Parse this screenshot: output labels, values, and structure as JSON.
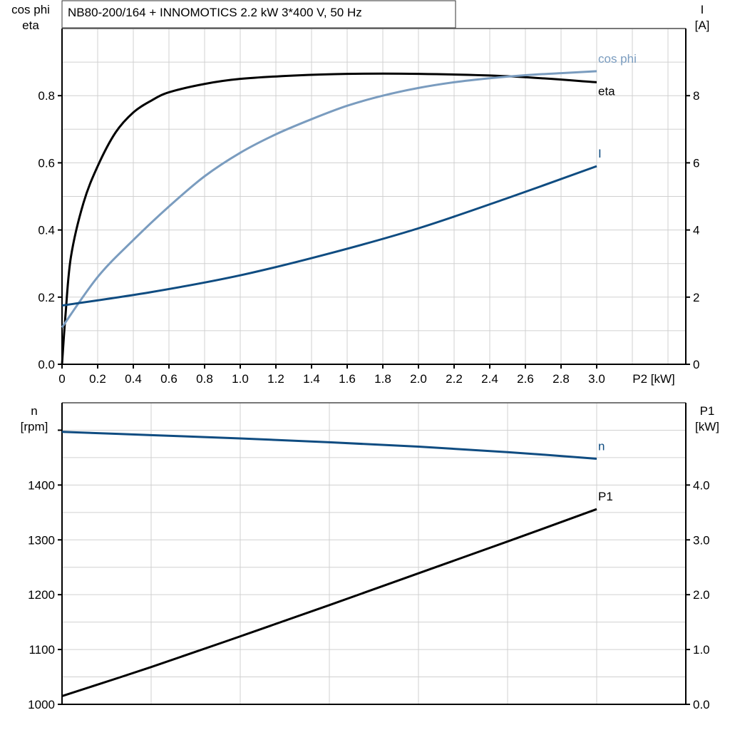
{
  "chart_data": [
    {
      "type": "line",
      "title": "NB80-200/164 + INNOMOTICS   2.2 kW   3*400 V, 50 Hz",
      "xlabel": "P2 [kW]",
      "ylabel_left": [
        "cos phi",
        "eta"
      ],
      "ylabel_right": [
        "I",
        "[A]"
      ],
      "xlim": [
        0,
        3.5
      ],
      "ylim_left": [
        0,
        1.0
      ],
      "ylim_right": [
        0,
        10
      ],
      "x_ticks": [
        "0",
        "0.2",
        "0.4",
        "0.6",
        "0.8",
        "1.0",
        "1.2",
        "1.4",
        "1.6",
        "1.8",
        "2.0",
        "2.2",
        "2.4",
        "2.6",
        "2.8",
        "3.0"
      ],
      "y_ticks_left": [
        "0.0",
        "0.2",
        "0.4",
        "0.6",
        "0.8"
      ],
      "y_ticks_right": [
        "0",
        "2",
        "4",
        "6",
        "8"
      ],
      "grid": true,
      "series": [
        {
          "name": "eta",
          "axis": "left",
          "color": "#000000",
          "x": [
            0,
            0.02,
            0.05,
            0.12,
            0.2,
            0.3,
            0.4,
            0.5,
            0.6,
            0.8,
            1.0,
            1.3,
            1.6,
            2.0,
            2.5,
            3.0
          ],
          "y": [
            0,
            0.15,
            0.32,
            0.48,
            0.59,
            0.69,
            0.75,
            0.785,
            0.81,
            0.835,
            0.85,
            0.86,
            0.865,
            0.865,
            0.858,
            0.84
          ]
        },
        {
          "name": "cos phi",
          "axis": "left",
          "color": "#7a9cbf",
          "x": [
            0,
            0.2,
            0.4,
            0.6,
            0.8,
            1.0,
            1.2,
            1.4,
            1.6,
            1.8,
            2.0,
            2.2,
            2.4,
            2.6,
            2.8,
            3.0
          ],
          "y": [
            0.11,
            0.26,
            0.37,
            0.47,
            0.56,
            0.63,
            0.685,
            0.73,
            0.77,
            0.8,
            0.823,
            0.84,
            0.852,
            0.861,
            0.867,
            0.873
          ]
        },
        {
          "name": "I",
          "axis": "right",
          "color": "#0f4c81",
          "x": [
            0,
            0.5,
            1.0,
            1.5,
            2.0,
            2.5,
            3.0
          ],
          "y": [
            1.75,
            2.15,
            2.65,
            3.3,
            4.05,
            4.95,
            5.9
          ]
        }
      ]
    },
    {
      "type": "line",
      "ylabel_left": [
        "n",
        "[rpm]"
      ],
      "ylabel_right": [
        "P1",
        "[kW]"
      ],
      "xlim": [
        0,
        3.5
      ],
      "ylim_left": [
        1000,
        1550
      ],
      "ylim_right": [
        0,
        5.5
      ],
      "y_ticks_left": [
        "1000",
        "1100",
        "1200",
        "1300",
        "1400"
      ],
      "y_ticks_right": [
        "0.0",
        "1.0",
        "2.0",
        "3.0",
        "4.0"
      ],
      "grid": true,
      "series": [
        {
          "name": "n",
          "axis": "left",
          "color": "#0f4c81",
          "x": [
            0,
            0.5,
            1.0,
            1.5,
            2.0,
            2.5,
            3.0
          ],
          "y": [
            1497,
            1491,
            1485,
            1478,
            1470,
            1460,
            1448
          ]
        },
        {
          "name": "P1",
          "axis": "right",
          "color": "#000000",
          "x": [
            0,
            0.5,
            1.0,
            1.5,
            2.0,
            2.5,
            3.0
          ],
          "y": [
            0.15,
            0.68,
            1.24,
            1.81,
            2.39,
            2.97,
            3.56
          ]
        }
      ]
    }
  ]
}
